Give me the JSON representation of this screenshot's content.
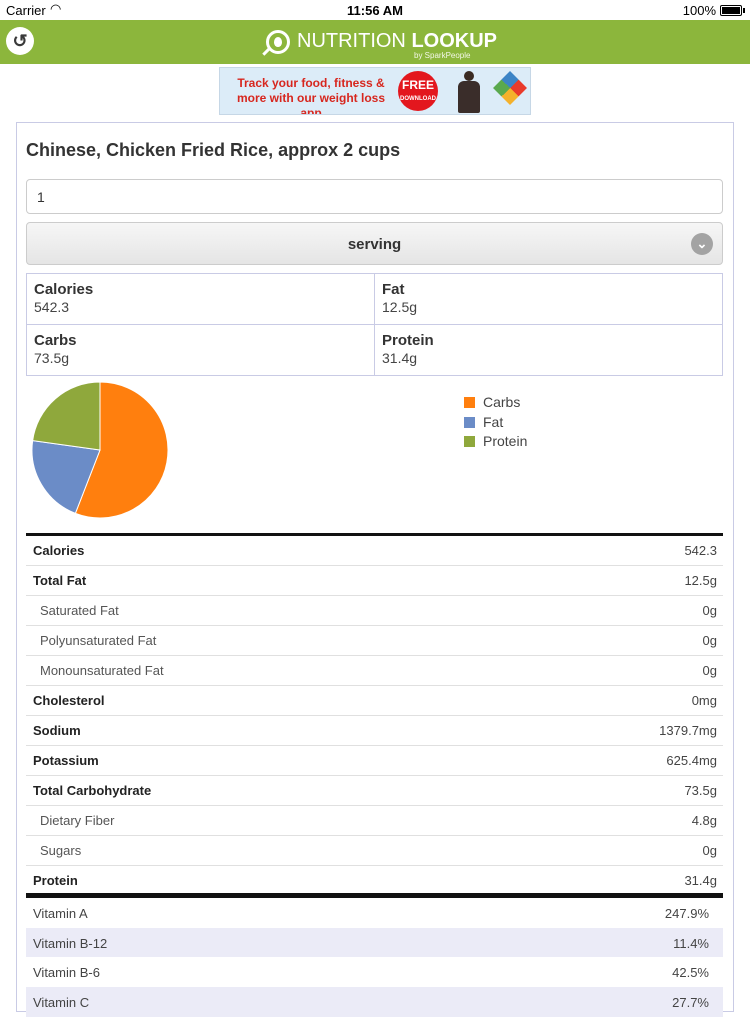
{
  "status": {
    "carrier": "Carrier",
    "time": "11:56 AM",
    "battery": "100%"
  },
  "nav": {
    "back_icon": "↺",
    "logo_text_light": "NUTRITION ",
    "logo_text_bold": "LOOKUP",
    "logo_by": "by SparkPeople"
  },
  "ad": {
    "text": "Track your food, fitness & more with our weight loss app",
    "badge_top": "FREE",
    "badge_bottom": "DOWNLOAD"
  },
  "food": {
    "title": "Chinese, Chicken Fried Rice, approx 2 cups",
    "quantity": "1",
    "unit": "serving"
  },
  "macros": {
    "calories": {
      "label": "Calories",
      "value": "542.3"
    },
    "fat": {
      "label": "Fat",
      "value": "12.5g"
    },
    "carbs": {
      "label": "Carbs",
      "value": "73.5g"
    },
    "protein": {
      "label": "Protein",
      "value": "31.4g"
    }
  },
  "chart_data": {
    "type": "pie",
    "title": "",
    "slices": [
      {
        "label": "Carbs",
        "value": 55.9,
        "color": "#ff7f0e"
      },
      {
        "label": "Fat",
        "value": 21.3,
        "color": "#6b8cc7"
      },
      {
        "label": "Protein",
        "value": 22.8,
        "color": "#8fa83c"
      }
    ],
    "legend_position": "right"
  },
  "facts": [
    {
      "label": "Calories",
      "value": "542.3",
      "sub": false
    },
    {
      "label": "Total Fat",
      "value": "12.5g",
      "sub": false
    },
    {
      "label": "Saturated Fat",
      "value": "0g",
      "sub": true
    },
    {
      "label": "Polyunsaturated Fat",
      "value": "0g",
      "sub": true
    },
    {
      "label": "Monounsaturated Fat",
      "value": "0g",
      "sub": true
    },
    {
      "label": "Cholesterol",
      "value": "0mg",
      "sub": false
    },
    {
      "label": "Sodium",
      "value": "1379.7mg",
      "sub": false
    },
    {
      "label": "Potassium",
      "value": "625.4mg",
      "sub": false
    },
    {
      "label": "Total Carbohydrate",
      "value": "73.5g",
      "sub": false
    },
    {
      "label": "Dietary Fiber",
      "value": "4.8g",
      "sub": true
    },
    {
      "label": "Sugars",
      "value": "0g",
      "sub": true
    },
    {
      "label": "Protein",
      "value": "31.4g",
      "sub": false
    }
  ],
  "vitamins": [
    {
      "label": "Vitamin A",
      "value": "247.9%"
    },
    {
      "label": "Vitamin B-12",
      "value": "11.4%"
    },
    {
      "label": "Vitamin B-6",
      "value": "42.5%"
    },
    {
      "label": "Vitamin C",
      "value": "27.7%"
    }
  ]
}
